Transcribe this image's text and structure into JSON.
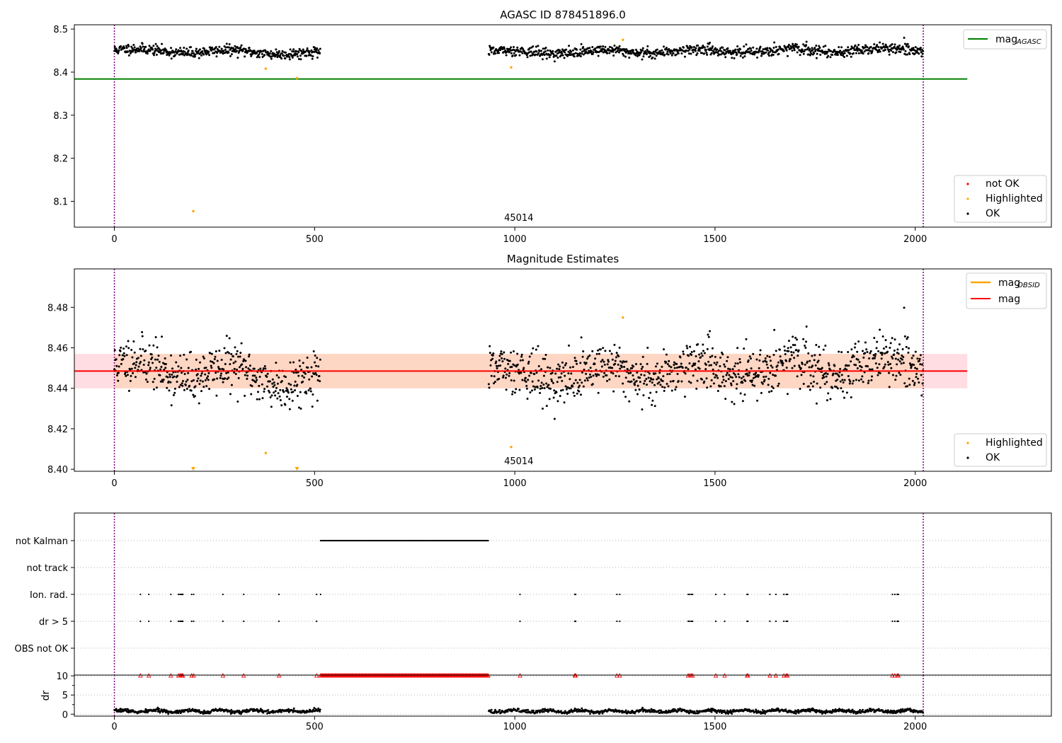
{
  "figure": {
    "axis_1_title": "AGASC ID 878451896.0",
    "axis_2_title": "Magnitude Estimates"
  },
  "chart_data": [
    {
      "type": "scatter",
      "title": "AGASC ID 878451896.0",
      "xlim": [
        -100,
        2340
      ],
      "ylim": [
        8.04,
        8.51
      ],
      "xticks": [
        0,
        500,
        1000,
        1500,
        2000
      ],
      "yticks": [
        8.1,
        8.2,
        8.3,
        8.4,
        8.5
      ],
      "vlines": [
        0,
        2020
      ],
      "obsid_label": {
        "text": "45014",
        "x": 1010,
        "y": 8.055
      },
      "segments": [
        {
          "x0": 0,
          "x1": 515,
          "mean": 8.4475,
          "trend": -0.007,
          "spread": 0.006
        },
        {
          "x0": 935,
          "x1": 2020,
          "mean": 8.449,
          "trend": 0.006,
          "spread": 0.006
        }
      ],
      "series": [
        {
          "name": "mag$_{AGASC}$",
          "kind": "hline",
          "y": 8.384,
          "x_range": [
            -100,
            2130
          ],
          "color": "#008000"
        },
        {
          "name": "not OK",
          "kind": "points",
          "color": "#ff0000",
          "points": []
        },
        {
          "name": "Highlighted",
          "kind": "points",
          "color": "#ffa500",
          "points": [
            [
              197,
              8.077
            ],
            [
              378,
              8.408
            ],
            [
              456,
              8.386
            ],
            [
              991,
              8.411
            ],
            [
              1270,
              8.475
            ]
          ]
        },
        {
          "name": "OK",
          "kind": "points",
          "color": "#000000",
          "points": "dense, see segments"
        }
      ],
      "legend": [
        {
          "label": "mag",
          "sub": "AGASC",
          "position": "top-right"
        },
        {
          "labels": [
            "not OK",
            "Highlighted",
            "OK"
          ],
          "position": "bottom-right"
        }
      ]
    },
    {
      "type": "scatter",
      "title": "Magnitude Estimates",
      "xlim": [
        -100,
        2340
      ],
      "ylim": [
        8.399,
        8.499
      ],
      "xticks": [
        0,
        500,
        1000,
        1500,
        2000
      ],
      "yticks": [
        8.4,
        8.42,
        8.44,
        8.46,
        8.48
      ],
      "vlines": [
        0,
        2020
      ],
      "obsid_label": {
        "text": "45014",
        "x": 1010,
        "y": 8.401
      },
      "series": [
        {
          "name": "mag$_{OBSID}$",
          "kind": "hline",
          "y": 8.4485,
          "band": [
            8.44,
            8.457
          ],
          "x_range": [
            -100,
            2130
          ],
          "color": "#ffa500"
        },
        {
          "name": "mag",
          "kind": "hline",
          "y": 8.4485,
          "band": [
            8.44,
            8.457
          ],
          "x_range": [
            -100,
            2130
          ],
          "color": "#ff0000"
        },
        {
          "name": "Highlighted",
          "kind": "points",
          "color": "#ffa500",
          "points": [
            [
              378,
              8.408
            ],
            [
              991,
              8.411
            ],
            [
              1270,
              8.475
            ]
          ],
          "below_axis_markers": [
            197,
            456
          ]
        },
        {
          "name": "OK",
          "kind": "points",
          "color": "#000000",
          "points": "dense, see axis 1 segments"
        }
      ],
      "legend": [
        {
          "labels": [
            "mag",
            "mag"
          ],
          "subs": [
            "OBSID",
            ""
          ],
          "position": "top-right"
        },
        {
          "labels": [
            "Highlighted",
            "OK"
          ],
          "position": "bottom-right"
        }
      ]
    },
    {
      "type": "scatter",
      "title": "",
      "xlim": [
        -100,
        2340
      ],
      "categories": [
        "not Kalman",
        "not track",
        "Ion. rad.",
        "dr > 5",
        "OBS not OK"
      ],
      "flags": {
        "not Kalman": {
          "ranges": [
            [
              515,
              935
            ]
          ],
          "points": []
        },
        "not track": {
          "ranges": [],
          "points": []
        },
        "Ion. rad.": {
          "ranges": [],
          "points": [
            65,
            86,
            141,
            160,
            164,
            167,
            169,
            171,
            193,
            198,
            271,
            323,
            411,
            505,
            515,
            1013,
            1150,
            1151,
            1152,
            1255,
            1262,
            1433,
            1437,
            1441,
            1444,
            1502,
            1524,
            1580,
            1582,
            1637,
            1652,
            1672,
            1678,
            1681,
            1943,
            1949,
            1955,
            1958
          ]
        },
        "dr > 5": {
          "ranges": [],
          "points": [
            65,
            86,
            141,
            160,
            164,
            167,
            169,
            171,
            193,
            198,
            271,
            323,
            411,
            505,
            1013,
            1150,
            1151,
            1152,
            1255,
            1262,
            1433,
            1437,
            1441,
            1444,
            1502,
            1524,
            1580,
            1582,
            1637,
            1652,
            1672,
            1678,
            1681,
            1943,
            1949,
            1955,
            1958
          ]
        },
        "OBS not OK": {
          "ranges": [],
          "points": []
        }
      }
    },
    {
      "type": "scatter",
      "title": "",
      "ylabel": "dr",
      "xlim": [
        -100,
        2340
      ],
      "ylim": [
        -0.5,
        10.2
      ],
      "xticks": [
        0,
        500,
        1000,
        1500,
        2000
      ],
      "yticks": [
        0,
        5,
        10
      ],
      "clip_value": 10,
      "series": [
        {
          "name": "dr",
          "kind": "points",
          "color": "#000000",
          "segments": [
            [
              0,
              515
            ],
            [
              935,
              2020
            ]
          ],
          "typical": 0.8
        },
        {
          "name": "dr clipped",
          "kind": "markers",
          "color": "#ff0000",
          "y": 10,
          "points": [
            65,
            86,
            141,
            160,
            164,
            167,
            169,
            171,
            193,
            198,
            271,
            323,
            411,
            505,
            1013,
            1150,
            1151,
            1152,
            1255,
            1262,
            1433,
            1437,
            1441,
            1444,
            1502,
            1524,
            1580,
            1582,
            1637,
            1652,
            1672,
            1678,
            1681,
            1943,
            1949,
            1955,
            1958
          ],
          "ranges": [
            [
              515,
              935
            ]
          ]
        }
      ]
    }
  ],
  "legend_1": {
    "mag_label": "mag",
    "mag_sub": "AGASC",
    "items": [
      "not OK",
      "Highlighted",
      "OK"
    ]
  },
  "legend_2": {
    "mag_obsid_label": "mag",
    "mag_obsid_sub": "OBSID",
    "mag_label": "mag",
    "items": [
      "Highlighted",
      "OK"
    ]
  },
  "colors": {
    "agasc": "#008000",
    "obsid": "#ffa500",
    "mean": "#ff0000",
    "band_outer": "#ffdde3",
    "band_inner": "#fdd6c4",
    "vline": "#800080",
    "flag_grid": "#b0b0b0"
  }
}
